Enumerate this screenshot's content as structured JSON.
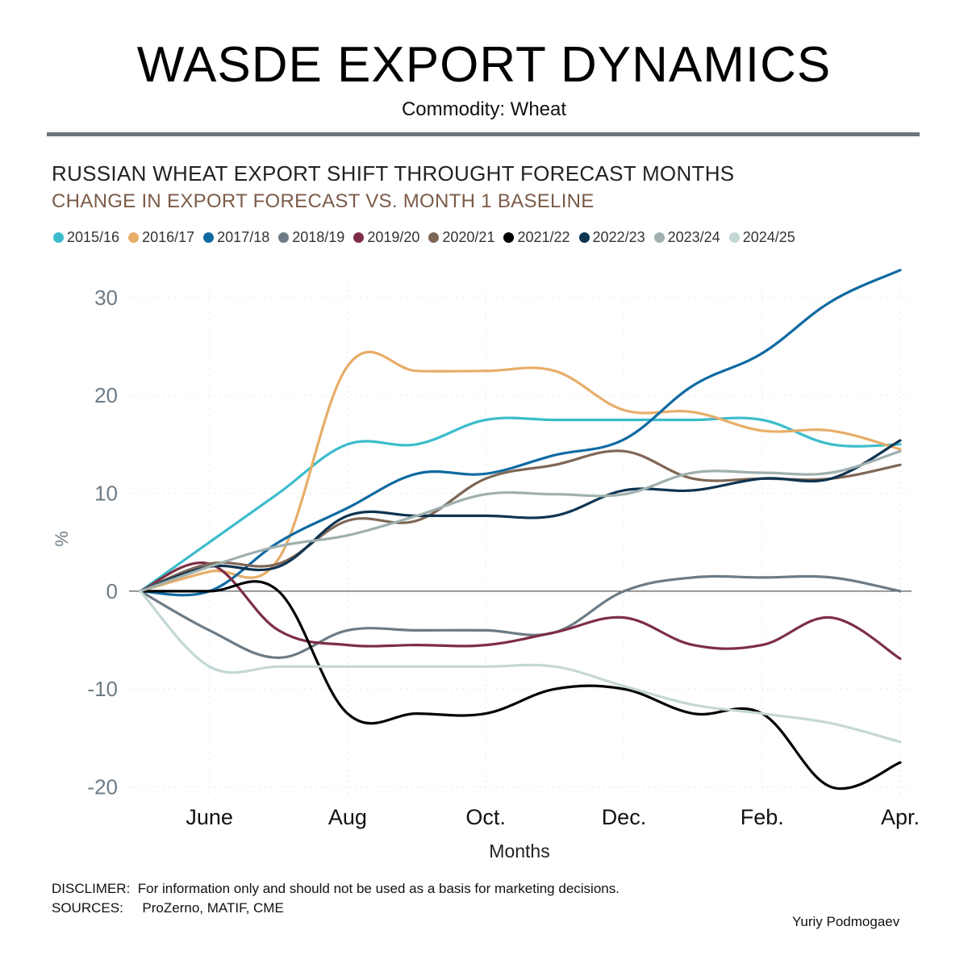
{
  "header": {
    "title": "WASDE EXPORT DYNAMICS",
    "subtitle": "Commodity: Wheat"
  },
  "chart_data": {
    "type": "line",
    "title": "RUSSIAN WHEAT EXPORT SHIFT THROUGHT FORECAST MONTHS",
    "subtitle": "CHANGE IN EXPORT FORECAST VS. MONTH 1 BASELINE",
    "xlabel": "Months",
    "ylabel": "%",
    "x_ticks": [
      "June",
      "Aug",
      "Oct.",
      "Dec.",
      "Feb.",
      "Apr."
    ],
    "x_tick_months": [
      2,
      4,
      6,
      8,
      10,
      12
    ],
    "x_range": [
      1,
      12
    ],
    "y_ticks": [
      30,
      20,
      10,
      0,
      -10,
      -20
    ],
    "y_tick_labels": [
      "30",
      "20",
      "10",
      "0",
      "-10",
      "-20"
    ],
    "ylim": [
      -23,
      36
    ],
    "legend_position": "top",
    "x": [
      1,
      2,
      3,
      4,
      5,
      6,
      7,
      8,
      9,
      10,
      11,
      12
    ],
    "series": [
      {
        "name": "2015/16",
        "color": "#3bbccc",
        "values": [
          0,
          5,
          10,
          15,
          15,
          17.5,
          17.5,
          17.5,
          17.5,
          17.5,
          15,
          15
        ]
      },
      {
        "name": "2016/17",
        "color": "#e8ad68",
        "values": [
          0,
          2,
          3.3,
          23,
          22.5,
          22.5,
          22.5,
          18.5,
          18.3,
          16.4,
          16.4,
          14.5
        ]
      },
      {
        "name": "2017/18",
        "color": "#0f6aa2",
        "values": [
          0,
          0,
          5,
          8.5,
          12,
          12,
          13.9,
          15.5,
          21,
          24.3,
          29.6,
          32.8
        ]
      },
      {
        "name": "2018/19",
        "color": "#6c7b85",
        "values": [
          0,
          -4,
          -6.8,
          -4,
          -4,
          -4,
          -4.2,
          0,
          1.4,
          1.4,
          1.4,
          0
        ]
      },
      {
        "name": "2019/20",
        "color": "#7d2e46",
        "values": [
          0,
          2.8,
          -4,
          -5.5,
          -5.5,
          -5.5,
          -4.2,
          -2.7,
          -5.5,
          -5.5,
          -2.7,
          -6.9
        ]
      },
      {
        "name": "2020/21",
        "color": "#7e6656",
        "values": [
          0,
          2.8,
          2.8,
          7.2,
          7.2,
          11.5,
          12.9,
          14.3,
          11.5,
          11.5,
          11.5,
          12.9
        ]
      },
      {
        "name": "2021/22",
        "color": "#000000",
        "values": [
          0,
          0,
          0,
          -12.5,
          -12.5,
          -12.5,
          -10,
          -10,
          -12.5,
          -12.5,
          -20,
          -17.5
        ]
      },
      {
        "name": "2022/23",
        "color": "#0e3451",
        "values": [
          0,
          2.5,
          2.5,
          7.7,
          7.7,
          7.7,
          7.7,
          10.3,
          10.3,
          11.5,
          11.5,
          15.4
        ]
      },
      {
        "name": "2023/24",
        "color": "#9fb0ae",
        "values": [
          0,
          2.5,
          4.6,
          5.7,
          7.7,
          9.9,
          9.9,
          9.9,
          12.1,
          12.1,
          12.1,
          14.3
        ]
      },
      {
        "name": "2024/25",
        "color": "#c3d7d6",
        "values": [
          0,
          -7.7,
          -7.7,
          -7.7,
          -7.7,
          -7.7,
          -7.7,
          -9.7,
          -11.6,
          -12.5,
          -13.5,
          -15.4
        ]
      }
    ]
  },
  "footer": {
    "disclaimer": "DISCLIMER:  For information only and should not be used as a basis for marketing decisions.",
    "sources": "SOURCES:     ProZerno, MATIF, CME",
    "author": "Yuriy Podmogaev"
  }
}
